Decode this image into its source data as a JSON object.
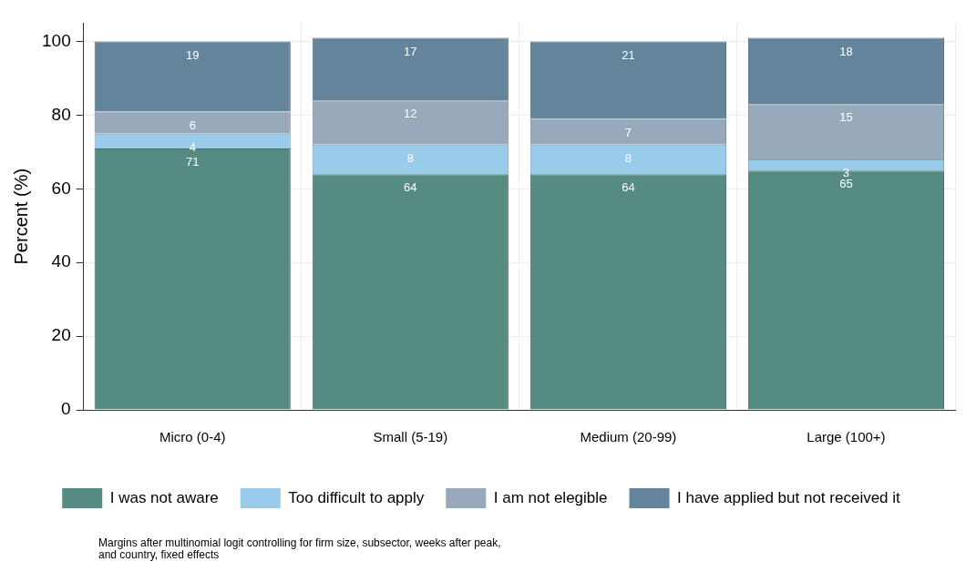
{
  "chart_data": {
    "type": "bar",
    "stacked": true,
    "categories": [
      "Micro (0-4)",
      "Small (5-19)",
      "Medium (20-99)",
      "Large (100+)"
    ],
    "series": [
      {
        "name": "I was not aware",
        "color": "#558b80",
        "values": [
          71,
          64,
          64,
          65
        ]
      },
      {
        "name": "Too difficult to apply",
        "color": "#99cbea",
        "values": [
          4,
          8,
          8,
          3
        ]
      },
      {
        "name": "I am not elegible",
        "color": "#97a9bb",
        "values": [
          6,
          12,
          7,
          15
        ]
      },
      {
        "name": "I have applied but not received it",
        "color": "#63849a",
        "values": [
          19,
          17,
          21,
          18
        ]
      }
    ],
    "ylabel": "Percent (%)",
    "ylim": [
      0,
      105
    ],
    "yticks": [
      0,
      20,
      40,
      60,
      80,
      100
    ],
    "grid": true,
    "legend": "bottom",
    "data_labels": true,
    "annotations": [
      "Margins after multinomial logit controlling for firm size, subsector, weeks after peak,\nand country, fixed effects"
    ]
  }
}
